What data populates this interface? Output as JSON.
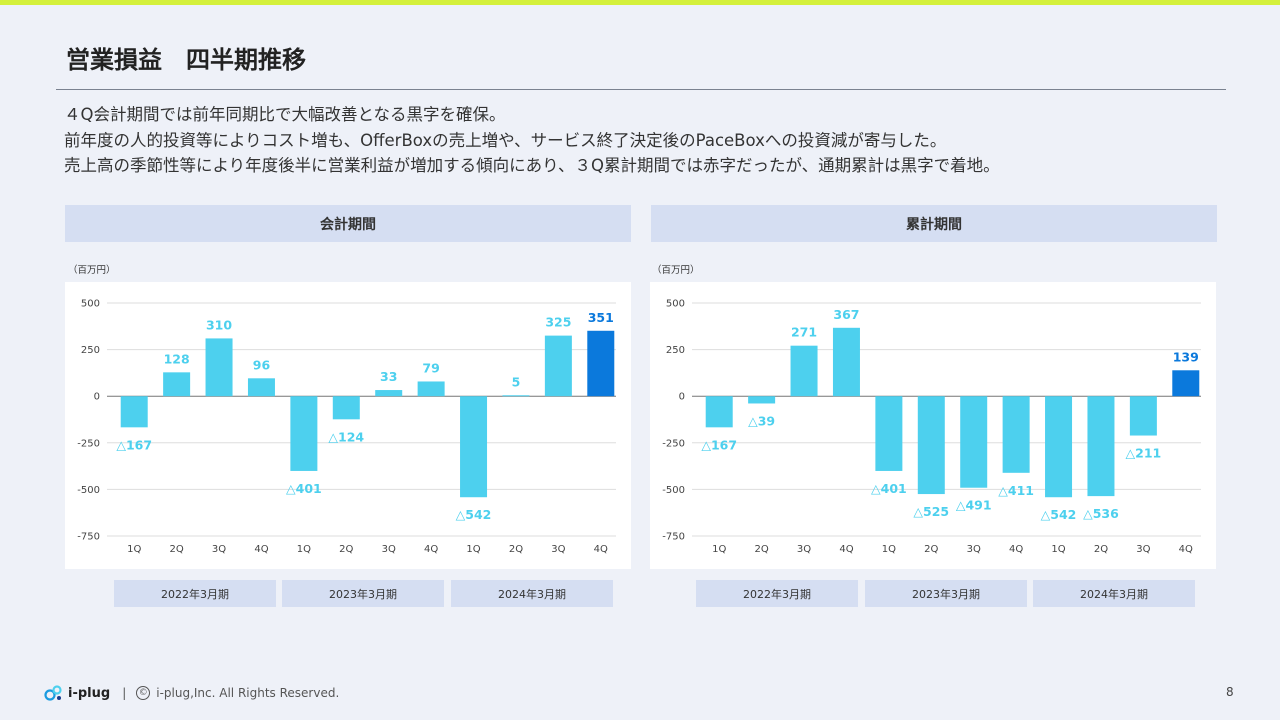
{
  "header": {
    "title": "営業損益　四半期推移",
    "lines": [
      "４Q会計期間では前年同期比で大幅改善となる黒字を確保。",
      "前年度の人的投資等によりコスト増も、OfferBoxの売上増や、サービス終了決定後のPaceBoxへの投資減が寄与した。",
      "売上高の季節性等により年度後半に営業利益が増加する傾向にあり、３Q累計期間では赤字だったが、通期累計は黒字で着地。"
    ]
  },
  "panels": {
    "left": {
      "title": "会計期間",
      "unit": "（百万円）"
    },
    "right": {
      "title": "累計期間",
      "unit": "（百万円）"
    }
  },
  "fiscal_years": [
    "2022年3月期",
    "2023年3月期",
    "2024年3月期"
  ],
  "colors": {
    "bar": "#4dd0ee",
    "highlight": "#0b79dc",
    "grid": "#dddddd",
    "axis": "#777777",
    "accent_bar": "#d4f03c"
  },
  "chart_data": [
    {
      "type": "bar",
      "title": "会計期間",
      "ylabel": "（百万円）",
      "categories": [
        "1Q",
        "2Q",
        "3Q",
        "4Q",
        "1Q",
        "2Q",
        "3Q",
        "4Q",
        "1Q",
        "2Q",
        "3Q",
        "4Q"
      ],
      "values": [
        -167,
        128,
        310,
        96,
        -401,
        -124,
        33,
        79,
        -542,
        5,
        325,
        351
      ],
      "labels": [
        "△167",
        "128",
        "310",
        "96",
        "△401",
        "△124",
        "33",
        "79",
        "△542",
        "5",
        "325",
        "351"
      ],
      "highlight_index": 11,
      "ylim": [
        -750,
        500
      ],
      "yticks": [
        500,
        250,
        0,
        -250,
        -500,
        -750
      ],
      "ytick_labels": [
        "500",
        "250",
        "0",
        "-250",
        "-500",
        "-750"
      ]
    },
    {
      "type": "bar",
      "title": "累計期間",
      "ylabel": "（百万円）",
      "categories": [
        "1Q",
        "2Q",
        "3Q",
        "4Q",
        "1Q",
        "2Q",
        "3Q",
        "4Q",
        "1Q",
        "2Q",
        "3Q",
        "4Q"
      ],
      "values": [
        -167,
        -39,
        271,
        367,
        -401,
        -525,
        -491,
        -411,
        -542,
        -536,
        -211,
        139
      ],
      "labels": [
        "△167",
        "△39",
        "271",
        "367",
        "△401",
        "△525",
        "△491",
        "△411",
        "△542",
        "△536",
        "△211",
        "139"
      ],
      "highlight_index": 11,
      "ylim": [
        -750,
        500
      ],
      "yticks": [
        500,
        250,
        0,
        -250,
        -500,
        -750
      ],
      "ytick_labels": [
        "500",
        "250",
        "0",
        "-250",
        "-500",
        "-750"
      ]
    }
  ],
  "footer": {
    "logo_text": "i-plug",
    "copyright": "i-plug,Inc. All Rights Reserved.",
    "copyright_symbol": "©",
    "page_number": "8"
  }
}
